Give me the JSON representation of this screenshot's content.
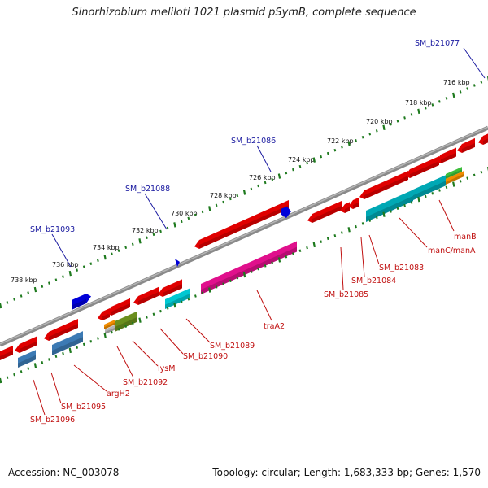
{
  "title": "Sinorhizobium meliloti 1021 plasmid pSymB, complete sequence",
  "footer": {
    "accession": "Accession: NC_003078",
    "stats": "Topology: circular; Length: 1,683,333 bp; Genes: 1,570"
  },
  "colors": {
    "backbone": "#8a8a8a",
    "tick": "#1e7a1e",
    "label_blue": "#1a1aa0",
    "label_red": "#c01010"
  },
  "ruler": {
    "unit": "kbp",
    "labels": [
      "716 kbp",
      "718 kbp",
      "720 kbp",
      "722 kbp",
      "724 kbp",
      "726 kbp",
      "728 kbp",
      "730 kbp",
      "732 kbp",
      "734 kbp",
      "736 kbp",
      "738 kbp"
    ]
  },
  "genes_outer": [
    "SM_b21077",
    "SM_b21086",
    "SM_b21088",
    "SM_b21093"
  ],
  "genes_inner": [
    "manB",
    "manC/manA",
    "SM_b21083",
    "SM_b21084",
    "SM_b21085",
    "traA2",
    "SM_b21089",
    "SM_b21090",
    "lysM",
    "SM_b21092",
    "argH2",
    "SM_b21095",
    "SM_b21096"
  ],
  "feature_colors": {
    "cds": "#e00000",
    "cog_cyan": "#00c8d2",
    "cog_teal": "#00a8b4",
    "cog_magenta": "#e0108c",
    "cog_olive": "#6b8f1e",
    "cog_steel": "#3c7ab4",
    "cog_orange": "#f08c00",
    "cog_green": "#3cbe3c",
    "cog_gray": "#b4b4b4",
    "outer_blue": "#0000d8"
  }
}
